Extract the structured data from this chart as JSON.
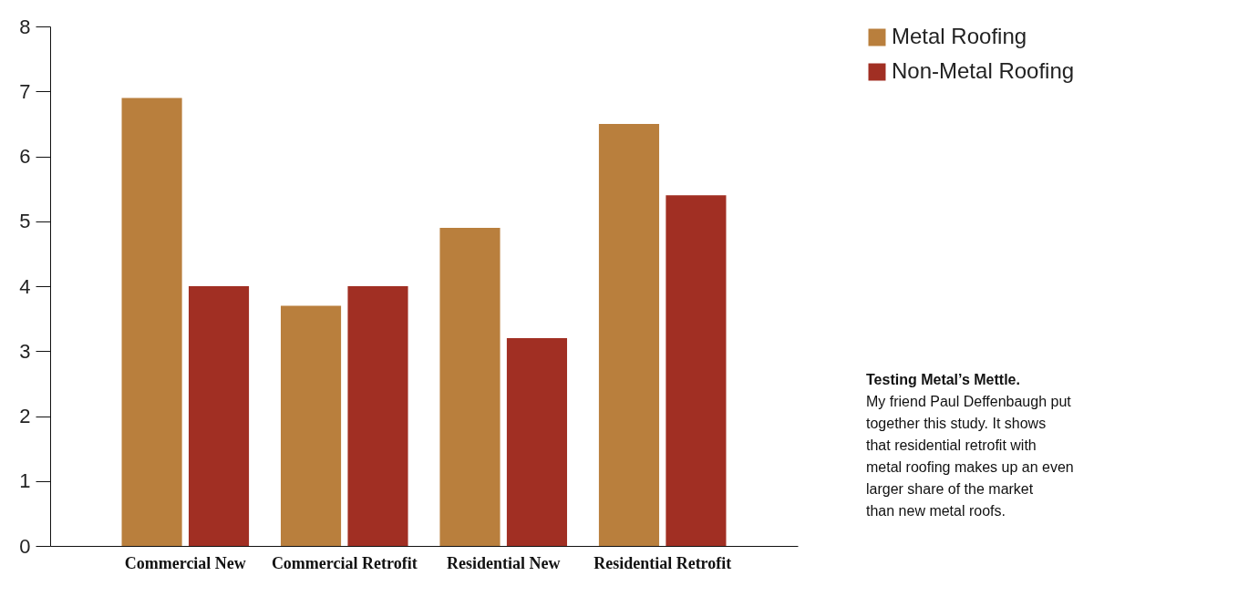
{
  "chart_data": {
    "type": "bar",
    "categories": [
      "Commercial New",
      "Commercial Retrofit",
      "Residential New",
      "Residential Retrofit"
    ],
    "series": [
      {
        "name": "Metal Roofing",
        "color": "#b97f3d",
        "values": [
          6.9,
          3.7,
          4.9,
          6.5
        ]
      },
      {
        "name": "Non-Metal Roofing",
        "color": "#a12f23",
        "values": [
          4.0,
          4.0,
          3.2,
          5.4
        ]
      }
    ],
    "ylim": [
      0,
      8
    ],
    "yticks": [
      0,
      1,
      2,
      3,
      4,
      5,
      6,
      7,
      8
    ],
    "grid": false,
    "legend": "top right",
    "annotations": [
      "Testing Metal’s Mettle.",
      "My friend Paul Deffenbaugh put together this study. It shows that residential retrofit with metal roofing makes up an even larger share of the market than new metal roofs."
    ]
  }
}
